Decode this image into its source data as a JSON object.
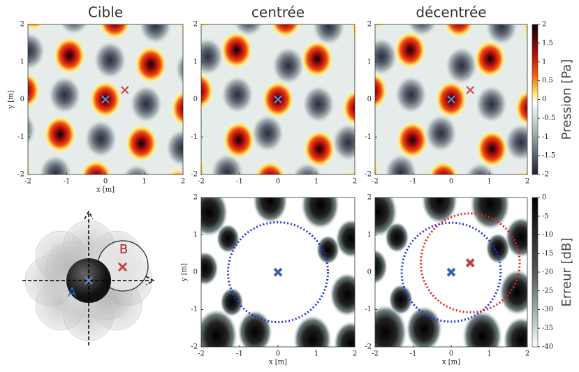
{
  "panels": [
    {
      "title": "Cible"
    },
    {
      "title": "centrée"
    },
    {
      "title": "décentrée"
    }
  ],
  "axes": {
    "ticks": [
      -2,
      -1,
      0,
      1,
      2
    ],
    "x_label": "x [m]",
    "y_label": "y [m]"
  },
  "colorbars": [
    {
      "label": "Pression [Pa]",
      "ticks": [
        2,
        1.5,
        1,
        0.5,
        0,
        -0.5,
        -1,
        -1.5,
        -2
      ]
    },
    {
      "label": "Erreur [dB]",
      "ticks": [
        0,
        -5,
        -10,
        -15,
        -20,
        -25,
        -30,
        -35,
        -40
      ]
    }
  ],
  "diagram": {
    "labels": [
      "A",
      "B"
    ]
  }
}
